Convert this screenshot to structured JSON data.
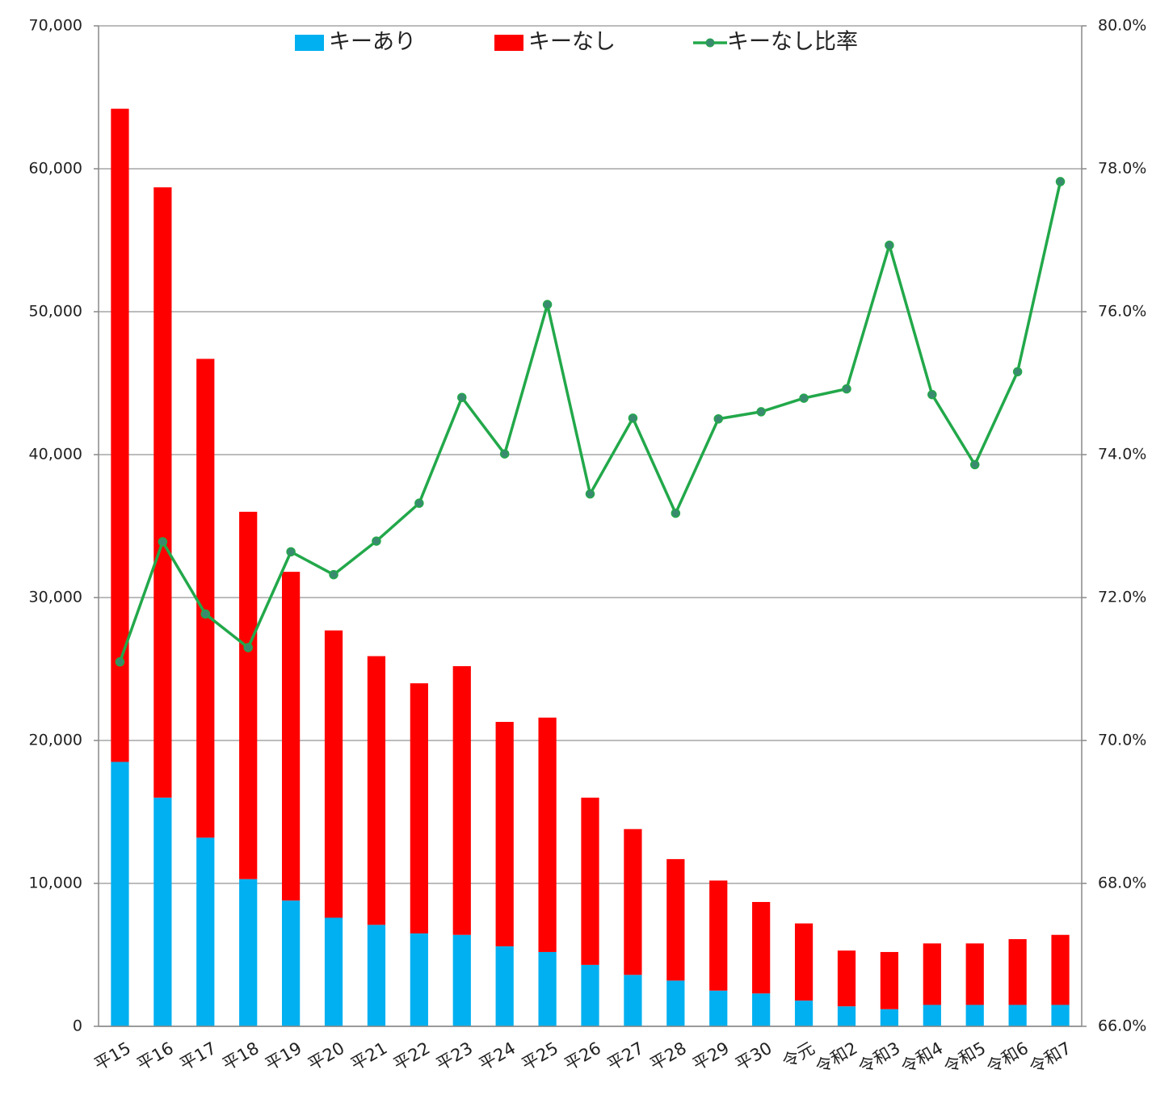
{
  "chart_data": {
    "type": "bar",
    "categories": [
      "平15",
      "平16",
      "平17",
      "平18",
      "平19",
      "平20",
      "平21",
      "平22",
      "平23",
      "平24",
      "平25",
      "平26",
      "平27",
      "平28",
      "平29",
      "平30",
      "令元",
      "令和2",
      "令和3",
      "令和4",
      "令和5",
      "令和6",
      "令和7"
    ],
    "series": [
      {
        "name": "キーあり",
        "color": "#00b0f0",
        "values": [
          18500,
          16000,
          13200,
          10300,
          8800,
          7600,
          7100,
          6500,
          6400,
          5600,
          5200,
          4300,
          3600,
          3200,
          2500,
          2300,
          1800,
          1400,
          1200,
          1500,
          1500,
          1500,
          1500
        ]
      },
      {
        "name": "キーなし",
        "color": "#ff0000",
        "values": [
          45700,
          42700,
          33500,
          25700,
          23000,
          20100,
          18800,
          17500,
          18800,
          15700,
          16400,
          11700,
          10200,
          8500,
          7700,
          6400,
          5400,
          3900,
          4000,
          4300,
          4300,
          4600,
          4900
        ]
      },
      {
        "name": "キーなし比率",
        "color": "#22a84a",
        "type": "line",
        "axis": "y2",
        "values": [
          71.1,
          72.78,
          71.77,
          71.3,
          72.64,
          72.32,
          72.79,
          73.32,
          74.8,
          74.01,
          76.1,
          73.45,
          74.51,
          73.18,
          74.5,
          74.6,
          74.79,
          74.92,
          76.93,
          74.84,
          73.86,
          75.16,
          77.82
        ]
      }
    ],
    "stacked": true,
    "ylim": [
      0,
      70000
    ],
    "yticks": [
      0,
      {
        "value": 10000,
        "label": "10,000"
      },
      {
        "value": 20000,
        "label": "20,000"
      },
      {
        "value": 30000,
        "label": "30,000"
      },
      {
        "value": 40000,
        "label": "40,000"
      },
      {
        "value": 50000,
        "label": "50,000"
      },
      {
        "value": 60000,
        "label": "60,000"
      },
      {
        "value": 70000,
        "label": "70,000"
      }
    ],
    "y2lim": [
      66,
      80
    ],
    "y2ticks": [
      {
        "value": 66,
        "label": "66.0%"
      },
      {
        "value": 68,
        "label": "68.0%"
      },
      {
        "value": 70,
        "label": "70.0%"
      },
      {
        "value": 72,
        "label": "72.0%"
      },
      {
        "value": 74,
        "label": "74.0%"
      },
      {
        "value": 76,
        "label": "76.0%"
      },
      {
        "value": 78,
        "label": "78.0%"
      },
      {
        "value": 80,
        "label": "80.0%"
      }
    ],
    "grid": true,
    "legend": "top"
  }
}
